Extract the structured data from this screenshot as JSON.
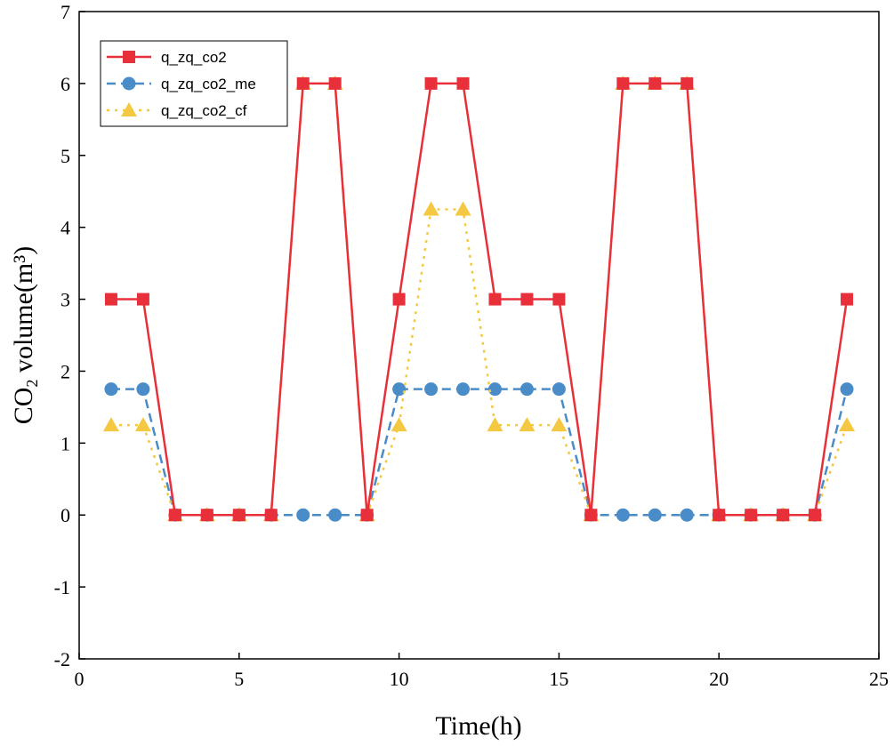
{
  "chart_data": {
    "type": "line",
    "title": "",
    "xlabel": "Time(h)",
    "ylabel_main": "CO",
    "ylabel_sub": "2",
    "ylabel_rest": " volume(m³)",
    "xlim": [
      0,
      25
    ],
    "ylim": [
      -2,
      7
    ],
    "xticks": [
      0,
      5,
      10,
      15,
      20,
      25
    ],
    "yticks": [
      -2,
      -1,
      0,
      1,
      2,
      3,
      4,
      5,
      6,
      7
    ],
    "grid": false,
    "legend_position": "top-left",
    "x": [
      1,
      2,
      3,
      4,
      5,
      6,
      7,
      8,
      9,
      10,
      11,
      12,
      13,
      14,
      15,
      16,
      17,
      18,
      19,
      20,
      21,
      22,
      23,
      24
    ],
    "series": [
      {
        "name": "q_zq_co2",
        "color": "#e8303a",
        "marker": "square",
        "line_style": "solid",
        "values": [
          3,
          3,
          0,
          0,
          0,
          0,
          6,
          6,
          0,
          3,
          6,
          6,
          3,
          3,
          3,
          0,
          6,
          6,
          6,
          0,
          0,
          0,
          0,
          3
        ]
      },
      {
        "name": "q_zq_co2_me",
        "color": "#4a8cc8",
        "marker": "circle",
        "line_style": "dashed",
        "values": [
          1.75,
          1.75,
          0,
          0,
          0,
          0,
          0,
          0,
          0,
          1.75,
          1.75,
          1.75,
          1.75,
          1.75,
          1.75,
          0,
          0,
          0,
          0,
          0,
          0,
          0,
          0,
          1.75
        ]
      },
      {
        "name": "q_zq_co2_cf",
        "color": "#f5c842",
        "marker": "triangle",
        "line_style": "dotted",
        "values": [
          1.25,
          1.25,
          0,
          0,
          0,
          0,
          6,
          6,
          0,
          1.25,
          4.25,
          4.25,
          1.25,
          1.25,
          1.25,
          0,
          6,
          6,
          6,
          0,
          0,
          0,
          0,
          1.25
        ]
      }
    ]
  }
}
